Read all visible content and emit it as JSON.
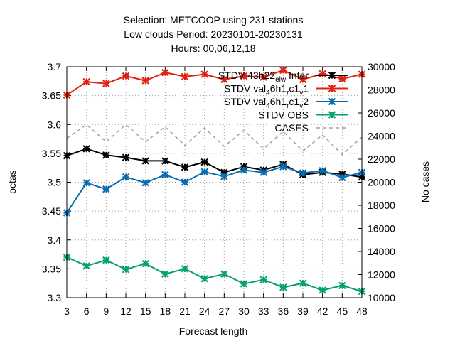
{
  "chart_data": {
    "type": "line",
    "title_lines": [
      "Selection: METCOOP using   231 stations",
      "Low clouds   Period: 20230101-20230131",
      "Hours: 00,06,12,18"
    ],
    "xlabel": "Forecast length",
    "ylabel": "octas",
    "y2label": "No cases",
    "x": [
      3,
      6,
      9,
      12,
      15,
      18,
      21,
      24,
      27,
      30,
      33,
      36,
      39,
      42,
      45,
      48
    ],
    "xlim": [
      3,
      48
    ],
    "ylim": [
      3.3,
      3.7
    ],
    "y2lim": [
      10000,
      30000
    ],
    "yticks": [
      "3.3",
      "3.35",
      "3.4",
      "3.45",
      "3.5",
      "3.55",
      "3.6",
      "3.65",
      "3.7"
    ],
    "y2ticks": [
      "10000",
      "12000",
      "14000",
      "16000",
      "18000",
      "20000",
      "22000",
      "24000",
      "26000",
      "28000",
      "30000"
    ],
    "xticks": [
      "3",
      "6",
      "9",
      "12",
      "15",
      "18",
      "21",
      "24",
      "27",
      "30",
      "33",
      "36",
      "39",
      "42",
      "45",
      "48"
    ],
    "grid": true,
    "legend_position": "top-right",
    "series": [
      {
        "legend": {
          "base": "STDV 43h22",
          "sub1": "el",
          "mid": "",
          "sub2": "w",
          "tail": " Inter"
        },
        "color": "#000000",
        "axis": "y",
        "dash": "",
        "marker": "x",
        "values": [
          3.546,
          3.558,
          3.547,
          3.543,
          3.537,
          3.537,
          3.526,
          3.535,
          3.517,
          3.527,
          3.521,
          3.531,
          3.513,
          3.517,
          3.514,
          3.509
        ]
      },
      {
        "legend": {
          "base": "STDV val",
          "sub1": "4",
          "mid": "6h1",
          "sub2": "r",
          "tail": "c1",
          "sub3": "v",
          "tail2": "1"
        },
        "color": "#e02010",
        "axis": "y",
        "dash": "",
        "marker": "x",
        "values": [
          3.651,
          3.674,
          3.671,
          3.684,
          3.676,
          3.69,
          3.683,
          3.687,
          3.678,
          3.684,
          3.682,
          3.694,
          3.678,
          3.688,
          3.679,
          3.687
        ]
      },
      {
        "legend": {
          "base": "STDV val",
          "sub1": "4",
          "mid": "6h1",
          "sub2": "r",
          "tail": "c1",
          "sub3": "v",
          "tail2": "2"
        },
        "color": "#0a6cb0",
        "axis": "y",
        "dash": "",
        "marker": "x",
        "values": [
          3.447,
          3.499,
          3.488,
          3.509,
          3.499,
          3.513,
          3.5,
          3.518,
          3.51,
          3.521,
          3.517,
          3.527,
          3.516,
          3.52,
          3.508,
          3.517
        ]
      },
      {
        "legend": {
          "base": "STDV OBS"
        },
        "color": "#08a070",
        "axis": "y",
        "dash": "",
        "marker": "x",
        "values": [
          3.37,
          3.355,
          3.365,
          3.349,
          3.359,
          3.341,
          3.35,
          3.333,
          3.341,
          3.324,
          3.331,
          3.318,
          3.325,
          3.313,
          3.321,
          3.311
        ]
      },
      {
        "legend": {
          "base": "CASES"
        },
        "color": "#a0a0a0",
        "axis": "y2",
        "dash": "5,4",
        "marker": "none",
        "values": [
          23800,
          25000,
          23500,
          25000,
          23500,
          24800,
          23200,
          24700,
          23100,
          24500,
          22900,
          24400,
          22700,
          24100,
          22400,
          23900
        ]
      }
    ]
  }
}
